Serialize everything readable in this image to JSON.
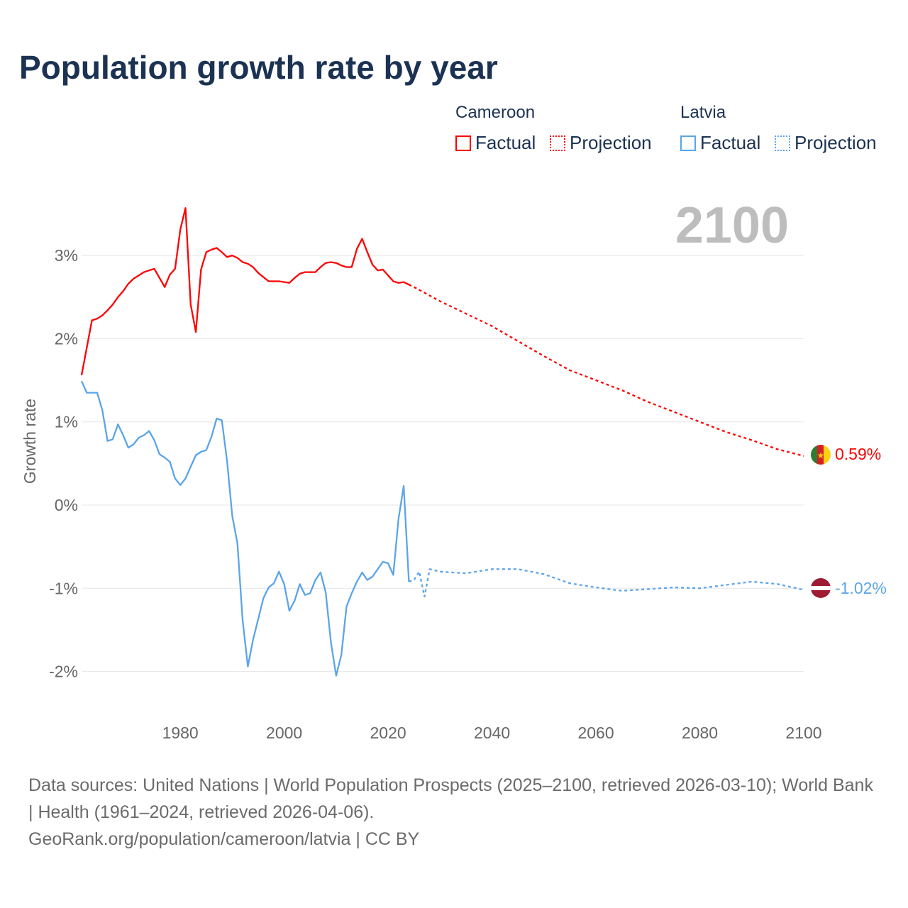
{
  "title": "Population growth rate by year",
  "legend": {
    "countries": [
      {
        "name": "Cameroon",
        "color": "#ff0000",
        "factual": "Factual",
        "projection": "Projection"
      },
      {
        "name": "Latvia",
        "color": "#5ba4ea",
        "factual": "Factual",
        "projection": "Projection"
      }
    ]
  },
  "year_label": "2100",
  "end_labels": {
    "cameroon": "0.59%",
    "latvia": "-1.02%"
  },
  "footer": {
    "sources": "Data sources: United Nations | World Population Prospects (2025–2100, retrieved 2026-03-10); World Bank | Health (1961–2024, retrieved 2026-04-06).",
    "credit": "GeoRank.org/population/cameroon/latvia | CC BY"
  },
  "chart_data": {
    "type": "line",
    "title": "Population growth rate by year",
    "xlabel": "",
    "ylabel": "Growth rate",
    "xlim": [
      1961,
      2100
    ],
    "ylim": [
      -2.5,
      4
    ],
    "xticks": [
      1980,
      2000,
      2020,
      2040,
      2060,
      2080,
      2100
    ],
    "xtick_labels": [
      "1980",
      "2000",
      "2020",
      "2040",
      "2060",
      "2080",
      "2100"
    ],
    "yticks": [
      -2,
      -1,
      0,
      1,
      2,
      3
    ],
    "ytick_labels": [
      "-2%",
      "-1%",
      "0%",
      "1%",
      "2%",
      "3%"
    ],
    "grid": true,
    "legend_position": "top-right",
    "series": [
      {
        "name": "Cameroon Factual",
        "color": "#ff0000",
        "dash": false,
        "x": [
          1961,
          1962,
          1963,
          1964,
          1965,
          1966,
          1967,
          1968,
          1969,
          1970,
          1971,
          1972,
          1973,
          1974,
          1975,
          1976,
          1977,
          1978,
          1979,
          1980,
          1981,
          1982,
          1983,
          1984,
          1985,
          1986,
          1987,
          1988,
          1989,
          1990,
          1991,
          1992,
          1993,
          1994,
          1995,
          1996,
          1997,
          1998,
          1999,
          2000,
          2001,
          2002,
          2003,
          2004,
          2005,
          2006,
          2007,
          2008,
          2009,
          2010,
          2011,
          2012,
          2013,
          2014,
          2015,
          2016,
          2017,
          2018,
          2019,
          2020,
          2021,
          2022,
          2023,
          2024
        ],
        "y": [
          1.56,
          1.89,
          2.22,
          2.24,
          2.28,
          2.34,
          2.41,
          2.5,
          2.57,
          2.66,
          2.72,
          2.76,
          2.8,
          2.82,
          2.84,
          2.73,
          2.62,
          2.77,
          2.84,
          3.31,
          3.57,
          2.41,
          2.08,
          2.83,
          3.04,
          3.07,
          3.09,
          3.04,
          2.98,
          3.0,
          2.97,
          2.92,
          2.9,
          2.86,
          2.79,
          2.74,
          2.69,
          2.69,
          2.69,
          2.68,
          2.67,
          2.73,
          2.78,
          2.8,
          2.8,
          2.8,
          2.86,
          2.91,
          2.92,
          2.91,
          2.88,
          2.86,
          2.86,
          3.08,
          3.2,
          3.04,
          2.89,
          2.82,
          2.83,
          2.76,
          2.69,
          2.67,
          2.68,
          2.65
        ]
      },
      {
        "name": "Cameroon Projection",
        "color": "#ff0000",
        "dash": true,
        "x": [
          2024,
          2025,
          2030,
          2035,
          2040,
          2045,
          2050,
          2055,
          2060,
          2065,
          2070,
          2075,
          2080,
          2085,
          2090,
          2095,
          2100
        ],
        "y": [
          2.65,
          2.62,
          2.45,
          2.3,
          2.15,
          1.97,
          1.79,
          1.62,
          1.5,
          1.38,
          1.24,
          1.12,
          1.0,
          0.88,
          0.78,
          0.67,
          0.59
        ]
      },
      {
        "name": "Latvia Factual",
        "color": "#5ba4ea",
        "dash": false,
        "x": [
          1961,
          1962,
          1963,
          1964,
          1965,
          1966,
          1967,
          1968,
          1969,
          1970,
          1971,
          1972,
          1973,
          1974,
          1975,
          1976,
          1977,
          1978,
          1979,
          1980,
          1981,
          1982,
          1983,
          1984,
          1985,
          1986,
          1987,
          1988,
          1989,
          1990,
          1991,
          1992,
          1993,
          1994,
          1995,
          1996,
          1997,
          1998,
          1999,
          2000,
          2001,
          2002,
          2003,
          2004,
          2005,
          2006,
          2007,
          2008,
          2009,
          2010,
          2011,
          2012,
          2013,
          2014,
          2015,
          2016,
          2017,
          2018,
          2019,
          2020,
          2021,
          2022,
          2023,
          2024
        ],
        "y": [
          1.49,
          1.35,
          1.35,
          1.35,
          1.14,
          0.77,
          0.79,
          0.97,
          0.84,
          0.69,
          0.73,
          0.81,
          0.84,
          0.89,
          0.78,
          0.61,
          0.57,
          0.52,
          0.32,
          0.24,
          0.32,
          0.46,
          0.6,
          0.64,
          0.66,
          0.82,
          1.04,
          1.02,
          0.53,
          -0.13,
          -0.46,
          -1.38,
          -1.94,
          -1.62,
          -1.37,
          -1.12,
          -0.99,
          -0.94,
          -0.8,
          -0.95,
          -1.27,
          -1.15,
          -0.95,
          -1.08,
          -1.06,
          -0.9,
          -0.81,
          -1.05,
          -1.65,
          -2.05,
          -1.8,
          -1.22,
          -1.06,
          -0.92,
          -0.81,
          -0.9,
          -0.86,
          -0.77,
          -0.68,
          -0.7,
          -0.84,
          -0.17,
          0.23,
          -0.92
        ]
      },
      {
        "name": "Latvia Projection",
        "color": "#5ba4ea",
        "dash": true,
        "x": [
          2024,
          2025,
          2026,
          2027,
          2028,
          2030,
          2035,
          2040,
          2045,
          2050,
          2055,
          2060,
          2065,
          2070,
          2075,
          2080,
          2085,
          2090,
          2095,
          2100
        ],
        "y": [
          -0.92,
          -0.9,
          -0.8,
          -1.1,
          -0.77,
          -0.8,
          -0.82,
          -0.77,
          -0.77,
          -0.83,
          -0.94,
          -0.99,
          -1.03,
          -1.01,
          -0.99,
          -1.0,
          -0.96,
          -0.92,
          -0.95,
          -1.02
        ]
      }
    ]
  }
}
